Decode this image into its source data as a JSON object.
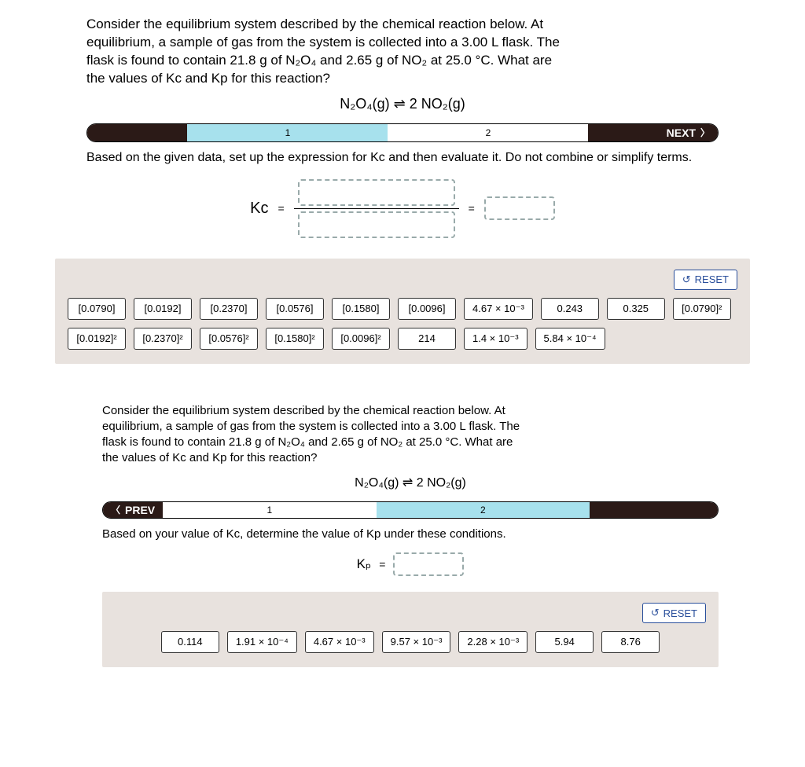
{
  "colors": {
    "panel_bg": "#e8e2de",
    "bar_dark": "#2b1a17",
    "bar_active": "#a7e1ed",
    "reset_border": "#2a4f9b"
  },
  "part1": {
    "prompt_lines": [
      "Consider the equilibrium system described by the chemical reaction below. At",
      "equilibrium, a sample of gas from the system is collected into a 3.00 L flask. The",
      "flask is found to contain 21.8 g of N₂O₄ and 2.65 g of NO₂ at  25.0 °C. What are",
      "the values of Kc and Kp for this reaction?"
    ],
    "equation": "N₂O₄(g) ⇌ 2 NO₂(g)",
    "stepbar": {
      "segments": [
        {
          "type": "dark",
          "flex": 1.0,
          "label": ""
        },
        {
          "type": "light",
          "flex": 2.0,
          "label": "1"
        },
        {
          "type": "white",
          "flex": 2.0,
          "label": "2"
        },
        {
          "type": "dark",
          "flex": 0.7,
          "label": ""
        }
      ],
      "next_label": "NEXT"
    },
    "instruction": "Based on the given data, set up the expression for Kc and then evaluate it. Do not combine or simplify terms.",
    "kc_label": "Kc",
    "equals": "=",
    "reset_label": "RESET",
    "tiles": [
      "[0.0790]",
      "[0.0192]",
      "[0.2370]",
      "[0.0576]",
      "[0.1580]",
      "[0.0096]",
      "4.67 × 10⁻³",
      "0.243",
      "0.325",
      "[0.0790]²",
      "[0.0192]²",
      "[0.2370]²",
      "[0.0576]²",
      "[0.1580]²",
      "[0.0096]²",
      "214",
      "1.4 × 10⁻³",
      "5.84 × 10⁻⁴"
    ]
  },
  "part2": {
    "prompt_lines": [
      "Consider the equilibrium system described by the chemical reaction below. At",
      "equilibrium, a sample of gas from the system is collected into a 3.00 L flask. The",
      "flask is found to contain 21.8 g of N₂O₄ and 2.65 g of NO₂ at  25.0 °C. What are",
      "the values of Kc and Kp for this reaction?"
    ],
    "equation": "N₂O₄(g) ⇌ 2 NO₂(g)",
    "stepbar": {
      "prev_label": "PREV",
      "segments": [
        {
          "type": "white",
          "flex": 2.0,
          "label": "1"
        },
        {
          "type": "light",
          "flex": 2.0,
          "label": "2"
        }
      ]
    },
    "instruction": "Based on your value of Kc, determine the value of Kp under these conditions.",
    "kp_label": "Kₚ",
    "equals": "=",
    "reset_label": "RESET",
    "tiles": [
      "0.114",
      "1.91 × 10⁻⁴",
      "4.67 × 10⁻³",
      "9.57 × 10⁻³",
      "2.28 × 10⁻³",
      "5.94",
      "8.76"
    ]
  }
}
